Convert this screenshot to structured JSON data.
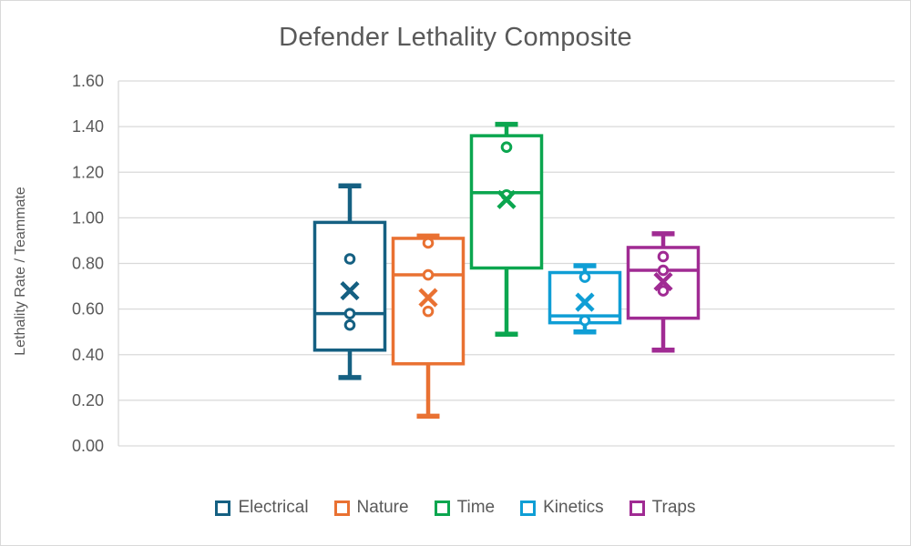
{
  "chart_data": {
    "type": "boxplot",
    "title": "Defender Lethality Composite",
    "ylabel": "Lethality Rate / Teammate",
    "xlabel": "",
    "ylim": [
      0.0,
      1.6
    ],
    "ytick_values": [
      0.0,
      0.2,
      0.4,
      0.6,
      0.8,
      1.0,
      1.2,
      1.4,
      1.6
    ],
    "ytick_labels": [
      "0.00",
      "0.20",
      "0.40",
      "0.60",
      "0.80",
      "1.00",
      "1.20",
      "1.40",
      "1.60"
    ],
    "grid": true,
    "legend_position": "bottom",
    "categories": [
      ""
    ],
    "series": [
      {
        "name": "Electrical",
        "color": "#156082",
        "min": 0.3,
        "q1": 0.42,
        "median": 0.58,
        "q3": 0.98,
        "max": 1.14,
        "mean": 0.68,
        "points": [
          0.82,
          0.58,
          0.53
        ]
      },
      {
        "name": "Nature",
        "color": "#E97132",
        "min": 0.13,
        "q1": 0.36,
        "median": 0.75,
        "q3": 0.91,
        "max": 0.92,
        "mean": 0.65,
        "points": [
          0.89,
          0.75,
          0.59
        ]
      },
      {
        "name": "Time",
        "color": "#0BA64F",
        "min": 0.49,
        "q1": 0.78,
        "median": 1.11,
        "q3": 1.36,
        "max": 1.41,
        "mean": 1.08,
        "points": [
          1.31,
          1.1
        ]
      },
      {
        "name": "Kinetics",
        "color": "#0F9ED5",
        "min": 0.5,
        "q1": 0.54,
        "median": 0.57,
        "q3": 0.76,
        "max": 0.79,
        "mean": 0.63,
        "points": [
          0.74,
          0.55
        ]
      },
      {
        "name": "Traps",
        "color": "#A02B93",
        "min": 0.42,
        "q1": 0.56,
        "median": 0.77,
        "q3": 0.87,
        "max": 0.93,
        "mean": 0.72,
        "points": [
          0.83,
          0.77,
          0.68
        ]
      }
    ],
    "style_colors": {
      "gridline": "#D9D9D9",
      "axis_line": "#D9D9D9",
      "tick_text": "#595959",
      "title_text": "#595959",
      "legend_text": "#595959",
      "background": "#FFFFFF"
    }
  }
}
